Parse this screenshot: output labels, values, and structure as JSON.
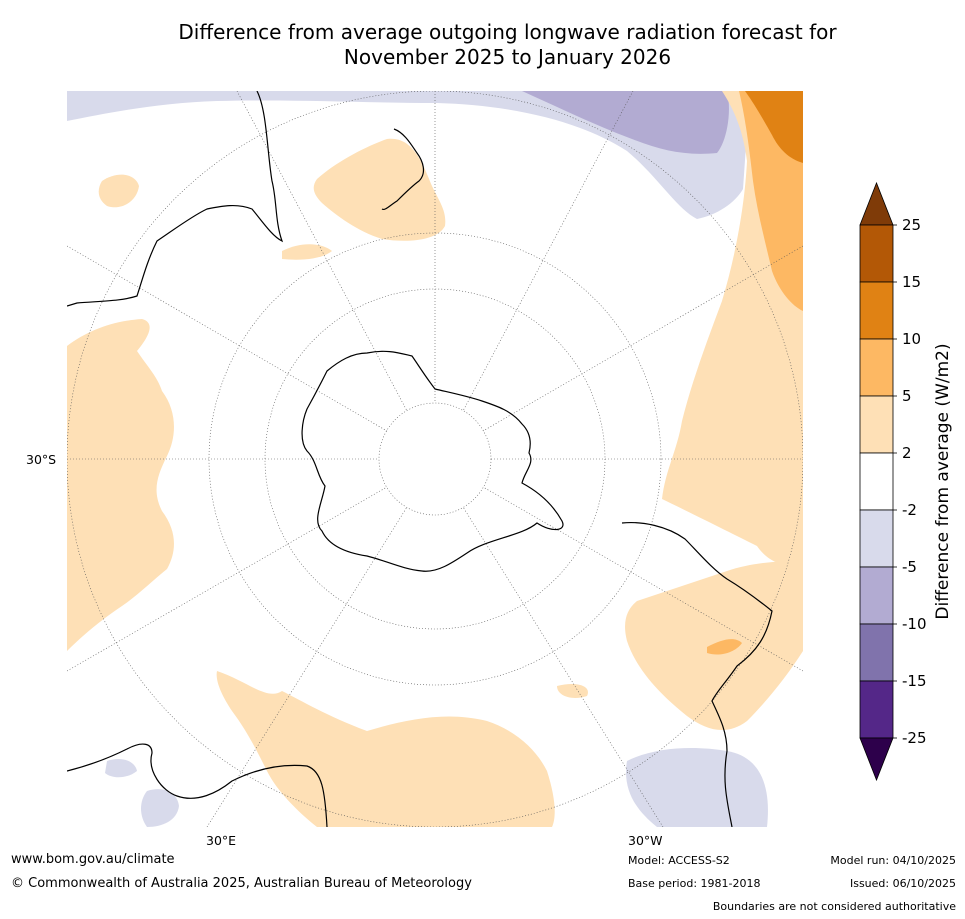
{
  "title": {
    "line1": "Difference from average outgoing longwave radiation forecast for",
    "line2": "November 2025 to January 2026"
  },
  "map": {
    "projection": "south-polar-stereographic",
    "labels": {
      "lat_30s": "30°S",
      "lon_30e": "30°E",
      "lon_30w": "30°W"
    }
  },
  "colorbar": {
    "label": "Difference from average (W/m2)",
    "tick_labels": [
      "25",
      "15",
      "10",
      "5",
      "2",
      "-2",
      "-5",
      "-10",
      "-15",
      "-25"
    ],
    "bins": [
      {
        "from": 25,
        "to": null,
        "color": "#7f3b08",
        "extend": "max"
      },
      {
        "from": 15,
        "to": 25,
        "color": "#b35806"
      },
      {
        "from": 10,
        "to": 15,
        "color": "#e08214"
      },
      {
        "from": 5,
        "to": 10,
        "color": "#fdb863"
      },
      {
        "from": 2,
        "to": 5,
        "color": "#fee0b6"
      },
      {
        "from": -2,
        "to": 2,
        "color": "#ffffff"
      },
      {
        "from": -5,
        "to": -2,
        "color": "#d8daeb"
      },
      {
        "from": -10,
        "to": -5,
        "color": "#b2abd2"
      },
      {
        "from": -15,
        "to": -10,
        "color": "#8073ac"
      },
      {
        "from": -25,
        "to": -15,
        "color": "#542788"
      },
      {
        "from": null,
        "to": -25,
        "color": "#2d004b",
        "extend": "min"
      }
    ]
  },
  "footer": {
    "website": "www.bom.gov.au/climate",
    "copyright": "© Commonwealth of Australia 2025, Australian Bureau of Meteorology",
    "model": "Model: ACCESS-S2",
    "base_period": "Base period: 1981-2018",
    "model_run": "Model run: 04/10/2025",
    "issued": "Issued: 06/10/2025",
    "disclaimer": "Boundaries are not considered authoritative"
  }
}
